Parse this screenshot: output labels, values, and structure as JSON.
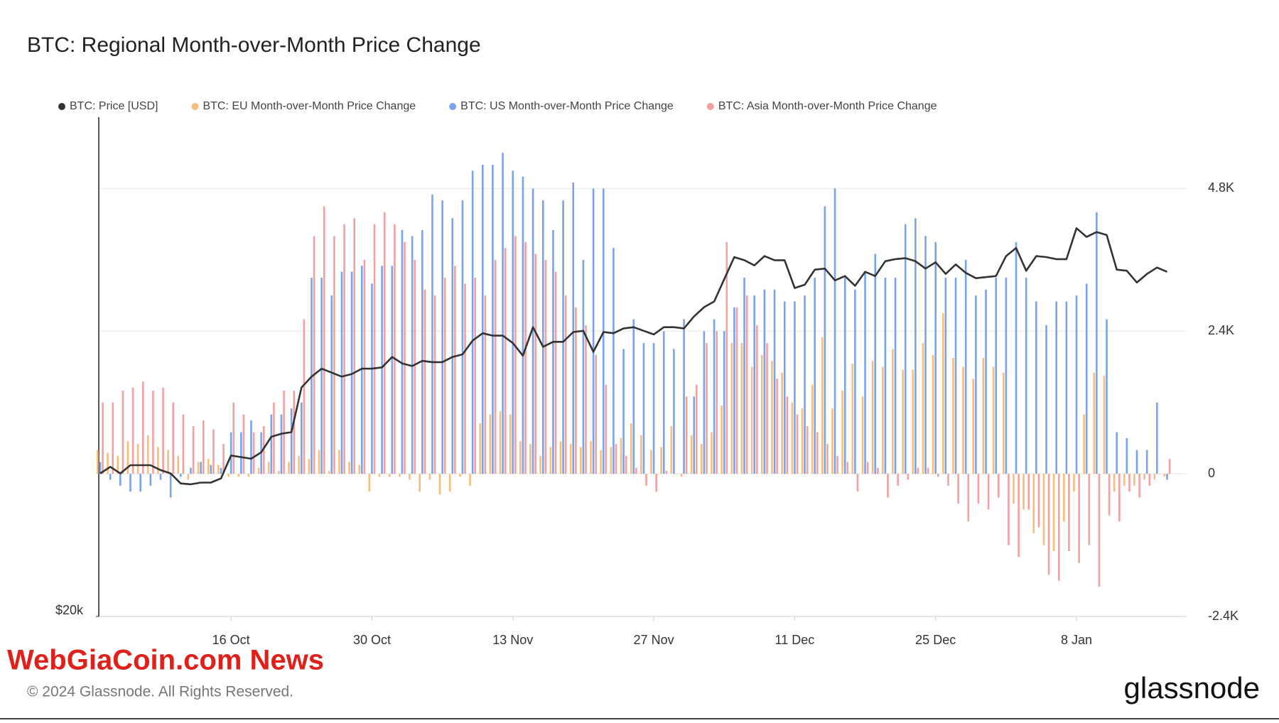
{
  "chart_data": {
    "type": "bar",
    "title": "BTC: Regional Month-over-Month Price Change",
    "x": [
      "3 Oct",
      "4 Oct",
      "5 Oct",
      "6 Oct",
      "7 Oct",
      "8 Oct",
      "9 Oct",
      "10 Oct",
      "11 Oct",
      "12 Oct",
      "13 Oct",
      "14 Oct",
      "15 Oct",
      "16 Oct",
      "17 Oct",
      "18 Oct",
      "19 Oct",
      "20 Oct",
      "21 Oct",
      "22 Oct",
      "23 Oct",
      "24 Oct",
      "25 Oct",
      "26 Oct",
      "27 Oct",
      "28 Oct",
      "29 Oct",
      "30 Oct",
      "31 Oct",
      "1 Nov",
      "2 Nov",
      "3 Nov",
      "4 Nov",
      "5 Nov",
      "6 Nov",
      "7 Nov",
      "8 Nov",
      "9 Nov",
      "10 Nov",
      "11 Nov",
      "12 Nov",
      "13 Nov",
      "14 Nov",
      "15 Nov",
      "16 Nov",
      "17 Nov",
      "18 Nov",
      "19 Nov",
      "20 Nov",
      "21 Nov",
      "22 Nov",
      "23 Nov",
      "24 Nov",
      "25 Nov",
      "26 Nov",
      "27 Nov",
      "28 Nov",
      "29 Nov",
      "30 Nov",
      "1 Dec",
      "2 Dec",
      "3 Dec",
      "4 Dec",
      "5 Dec",
      "6 Dec",
      "7 Dec",
      "8 Dec",
      "9 Dec",
      "10 Dec",
      "11 Dec",
      "12 Dec",
      "13 Dec",
      "14 Dec",
      "15 Dec",
      "16 Dec",
      "17 Dec",
      "18 Dec",
      "19 Dec",
      "20 Dec",
      "21 Dec",
      "22 Dec",
      "23 Dec",
      "24 Dec",
      "25 Dec",
      "26 Dec",
      "27 Dec",
      "28 Dec",
      "29 Dec",
      "30 Dec",
      "31 Dec",
      "1 Jan",
      "2 Jan",
      "3 Jan",
      "4 Jan",
      "5 Jan",
      "6 Jan",
      "7 Jan",
      "8 Jan",
      "9 Jan",
      "10 Jan",
      "11 Jan",
      "12 Jan",
      "13 Jan",
      "14 Jan",
      "15 Jan",
      "16 Jan",
      "17 Jan"
    ],
    "xticks": [
      "16 Oct",
      "30 Oct",
      "13 Nov",
      "27 Nov",
      "11 Dec",
      "25 Dec",
      "8 Jan"
    ],
    "series": [
      {
        "name": "BTC: Price [USD]",
        "type": "line",
        "axis": "y",
        "color": "#333333",
        "values": [
          27400,
          27800,
          27400,
          27900,
          27900,
          27900,
          27600,
          27400,
          26800,
          26750,
          26850,
          26850,
          27100,
          28500,
          28400,
          28300,
          28700,
          29700,
          29900,
          30000,
          33100,
          33900,
          34500,
          34200,
          33900,
          34100,
          34500,
          34500,
          34600,
          35400,
          34900,
          34700,
          35100,
          35000,
          35000,
          35400,
          35600,
          36700,
          37300,
          37100,
          37100,
          36500,
          35500,
          37800,
          36200,
          36600,
          36600,
          37400,
          37500,
          35800,
          37400,
          37300,
          37700,
          37800,
          37500,
          37200,
          37800,
          37800,
          37700,
          38700,
          39500,
          40000,
          42000,
          44100,
          43800,
          43300,
          44200,
          43800,
          43800,
          41200,
          41500,
          42900,
          43000,
          41900,
          42300,
          41400,
          42700,
          42300,
          43700,
          43900,
          44000,
          43700,
          43000,
          43600,
          42500,
          43400,
          42600,
          42100,
          42200,
          42300,
          44200,
          45000,
          42800,
          44200,
          44100,
          43900,
          43900,
          47000,
          46100,
          46600,
          46300,
          42900,
          42800,
          41700,
          42500,
          43100,
          42700
        ]
      },
      {
        "name": "BTC: EU Month-over-Month Price Change",
        "type": "bar",
        "axis": "y2",
        "color": "#f7bd7a",
        "values": [
          400,
          350,
          300,
          550,
          500,
          650,
          450,
          400,
          300,
          -100,
          200,
          250,
          150,
          -50,
          -50,
          -50,
          100,
          200,
          50,
          200,
          300,
          250,
          400,
          50,
          400,
          200,
          150,
          -300,
          -50,
          -50,
          -50,
          -100,
          -300,
          -100,
          -350,
          -300,
          -50,
          -200,
          850,
          1000,
          1050,
          1000,
          550,
          500,
          300,
          450,
          550,
          500,
          450,
          550,
          400,
          450,
          600,
          850,
          650,
          400,
          450,
          800,
          -50,
          650,
          500,
          700,
          1150,
          2200,
          2200,
          1800,
          2000,
          1900,
          1700,
          1200,
          1100,
          1500,
          2300,
          1100,
          1400,
          1850,
          1300,
          1900,
          1800,
          2100,
          1750,
          1750,
          2200,
          2000,
          2700,
          1950,
          1800,
          1600,
          1950,
          1800,
          1700,
          -500,
          -600,
          -1000,
          -1200,
          -1300,
          -800,
          -300,
          1000,
          1700,
          1650,
          -300,
          -200,
          -200,
          -100,
          -100,
          -50
        ]
      },
      {
        "name": "BTC: US Month-over-Month Price Change",
        "type": "bar",
        "axis": "y2",
        "color": "#7aa3ee",
        "values": [
          200,
          -100,
          -200,
          -300,
          -300,
          -200,
          -100,
          -400,
          -50,
          100,
          200,
          150,
          100,
          700,
          700,
          900,
          700,
          1000,
          1000,
          1100,
          1200,
          3300,
          3300,
          3000,
          3400,
          3400,
          3500,
          3200,
          3500,
          3500,
          4100,
          4000,
          4100,
          4700,
          4600,
          4300,
          4600,
          5100,
          5200,
          5200,
          5400,
          5100,
          5000,
          4800,
          4600,
          4100,
          4600,
          4900,
          3600,
          4800,
          4800,
          3800,
          2100,
          2600,
          2200,
          2200,
          2400,
          2100,
          2600,
          1300,
          2400,
          2600,
          2400,
          2800,
          3300,
          3000,
          3100,
          3100,
          2900,
          2900,
          3000,
          3300,
          4500,
          4800,
          3300,
          3100,
          3400,
          3700,
          3300,
          3300,
          4200,
          4300,
          4000,
          3900,
          3300,
          3300,
          3600,
          3000,
          3100,
          3300,
          3300,
          3900,
          3300,
          2900,
          2500,
          2900,
          2900,
          3000,
          3200,
          4400,
          2600,
          700,
          600,
          400,
          400,
          1200,
          -100
        ]
      },
      {
        "name": "BTC: Asia Month-over-Month Price Change",
        "type": "bar",
        "axis": "y2",
        "color": "#f5a0a0",
        "values": [
          1200,
          1200,
          1400,
          1450,
          1550,
          1400,
          1450,
          1200,
          1000,
          800,
          900,
          750,
          500,
          1200,
          1000,
          700,
          800,
          1200,
          1400,
          1400,
          2600,
          4000,
          4500,
          4000,
          4200,
          4300,
          3600,
          4200,
          4400,
          4200,
          3900,
          3600,
          3100,
          3000,
          3300,
          3500,
          3200,
          3300,
          3000,
          3600,
          3800,
          4000,
          3900,
          3700,
          3600,
          3400,
          3000,
          2800,
          2500,
          2000,
          1500,
          500,
          300,
          100,
          -200,
          -300,
          50,
          0,
          1300,
          1500,
          2200,
          2400,
          3900,
          2800,
          3000,
          2500,
          2200,
          1600,
          1300,
          1000,
          800,
          700,
          500,
          300,
          200,
          -300,
          200,
          100,
          -400,
          -200,
          -100,
          100,
          100,
          -50,
          -200,
          -500,
          -800,
          -500,
          -600,
          -400,
          -1200,
          -1400,
          -600,
          -900,
          -1700,
          -1800,
          -1300,
          -1500,
          -1200,
          -1900,
          -700,
          -800,
          -300,
          -400,
          -200,
          0,
          250
        ]
      }
    ],
    "ylim": [
      20000,
      60000
    ],
    "yscale": "log",
    "yticks": [
      {
        "value": 20000,
        "label": "$20k"
      }
    ],
    "y2lim": [
      -2400,
      6000
    ],
    "y2ticks": [
      {
        "value": -2400,
        "label": "-2.4K"
      },
      0,
      {
        "value": 2400,
        "label": "2.4K"
      },
      {
        "value": 4800,
        "label": "4.8K"
      }
    ],
    "grid": true,
    "legend": "top"
  },
  "watermark": "WebGiaCoin.com News",
  "copyright": "© 2024 Glassnode. All Rights Reserved.",
  "brand": "glassnode"
}
